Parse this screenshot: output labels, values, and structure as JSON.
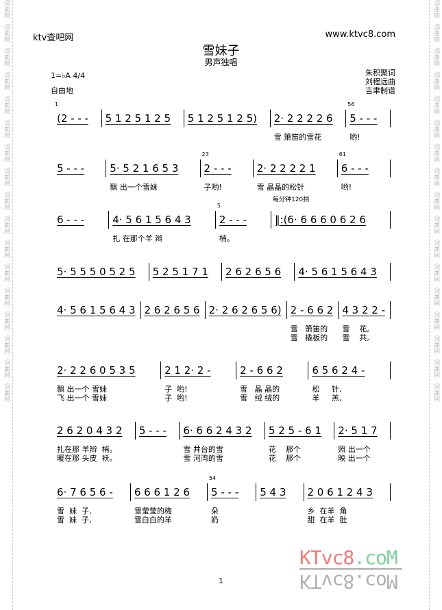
{
  "header": {
    "site_left": "ktv查吧网",
    "site_right": "www.ktvc8.com"
  },
  "song": {
    "title": "雪妹子",
    "subtitle": "男声独唱",
    "key": "1=♭A 4/4",
    "tempo_free": "自由地",
    "credits": [
      "朱积聚词",
      "刘程远曲",
      "吉聿制谱"
    ]
  },
  "watermark": {
    "side_text": "词曲网",
    "logo": "KTvc8.coM",
    "logo_colors": [
      "#f07a7a",
      "#7fcf9a"
    ]
  },
  "page_number": "1",
  "rows": [
    {
      "measures": [
        {
          "grace": "1",
          "notes": "(2 - - -",
          "lyrics": []
        },
        {
          "notes": "5 1 2 5 1 2 5",
          "lyrics": []
        },
        {
          "notes": "5 1 2 5 1 2 5)",
          "lyrics": []
        },
        {
          "notes": "2· 2 2 2 2 6",
          "lyrics": [
            "雪 箫笛的雪花"
          ]
        },
        {
          "grace": "56",
          "notes": "5 - - -",
          "lyrics": [
            "哟!"
          ]
        }
      ]
    },
    {
      "measures": [
        {
          "notes": "5 - - -",
          "lyrics": []
        },
        {
          "notes": "5· 5 2 1 6 5 3",
          "lyrics": [
            "飘 出一个雪妹"
          ]
        },
        {
          "grace": "23",
          "notes": "2 - - -",
          "lyrics": [
            "子哟!"
          ]
        },
        {
          "notes": "2· 2 2 2 2 1",
          "lyrics": [
            "雪 晶晶的松针"
          ]
        },
        {
          "grace": "61",
          "notes": "6 - - -",
          "lyrics": [
            "哟!"
          ]
        }
      ]
    },
    {
      "measures": [
        {
          "notes": "6 - - -",
          "lyrics": []
        },
        {
          "notes": "4· 5 6 1 5 6 4 3",
          "lyrics": [
            "扎 在那个羊 辫"
          ]
        },
        {
          "grace": "5",
          "notes": "2 - - -",
          "lyrics": [
            "梢。"
          ]
        },
        {
          "tempo": "每分钟120拍",
          "notes": "‖:(6· 6 6 6 0 6 2 6",
          "lyrics": []
        }
      ]
    },
    {
      "measures": [
        {
          "notes": "5· 5 5 5 0 5 2 5",
          "lyrics": []
        },
        {
          "notes": "5 2 5 1 7 1",
          "lyrics": []
        },
        {
          "notes": "2 6 2 6 5 6",
          "lyrics": []
        },
        {
          "notes": "4· 5 6 1 5 6 4 3",
          "lyrics": []
        }
      ]
    },
    {
      "measures": [
        {
          "notes": "4· 5 6 1 5 6 4 3",
          "lyrics": []
        },
        {
          "notes": "2 6 2 6 5 6",
          "lyrics": []
        },
        {
          "notes": "2· 2 6 2 6 5 6)",
          "lyrics": []
        },
        {
          "notes": "2 - 6 6 2",
          "lyrics": [
            "雪   箫笛的",
            "雪   橇板的"
          ]
        },
        {
          "notes": "4 3 2 2 -",
          "lyrics": [
            "雪    花,",
            "雪    共,"
          ]
        }
      ]
    },
    {
      "measures": [
        {
          "notes": "2· 2 2 6 0 5 3 5",
          "lyrics": [
            "飘 出一个 雪妹",
            "飞 出一个 雪妹"
          ]
        },
        {
          "notes": "2 1 2· 2 -",
          "lyrics": [
            "子  哟!",
            "子  哟!"
          ]
        },
        {
          "notes": "2 - 6 6 2",
          "lyrics": [
            "雪   晶 晶的",
            "雪   绒 绒的"
          ]
        },
        {
          "notes": "6 5 6 2 4 -",
          "lyrics": [
            "松     针,",
            "羊     羔,"
          ]
        }
      ]
    },
    {
      "measures": [
        {
          "notes": "2 6 2 0 4 3 2",
          "lyrics": [
            "扎在那 羊辫  梢。",
            "暖在那 头皮  袄。"
          ]
        },
        {
          "notes": "5 - - -",
          "lyrics": []
        },
        {
          "notes": "6· 6 6 2 4 3 2",
          "lyrics": [
            "雪 井台的雪",
            "雪 河湾的雪"
          ]
        },
        {
          "notes": "5 2 5 - 6 1",
          "lyrics": [
            "花    那个",
            "花    那个"
          ]
        },
        {
          "notes": "2· 5 1 7",
          "lyrics": [
            "照 出一个",
            "映 出一个"
          ]
        }
      ]
    },
    {
      "measures": [
        {
          "notes": "6· 7 6 5 6 -",
          "lyrics": [
            "雪  妹  子,",
            "雪  妹  子,"
          ]
        },
        {
          "notes": "6 6 6 1 2 6",
          "lyrics": [
            "雪莹莹的梅",
            "雪白白的羊"
          ]
        },
        {
          "grace": "54",
          "notes": "5 - - -",
          "lyrics": [
            "朵",
            "奶"
          ]
        },
        {
          "notes": "5 4 3",
          "lyrics": []
        },
        {
          "notes": "2 0 6 1 2 4 3",
          "lyrics": [
            "乡  在羊  角",
            "甜  在羊  肚"
          ]
        }
      ]
    }
  ]
}
